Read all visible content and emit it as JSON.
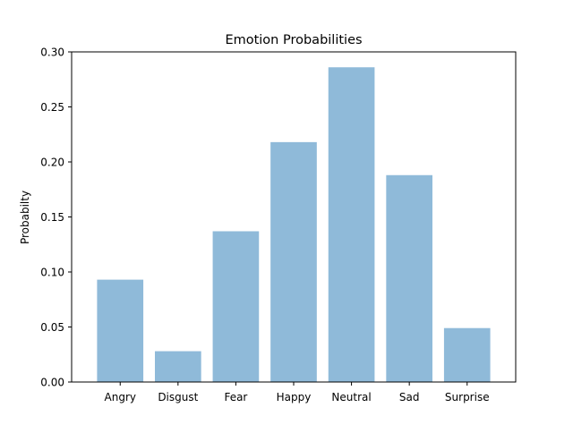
{
  "chart_data": {
    "type": "bar",
    "title": "Emotion Probabilities",
    "xlabel": "",
    "ylabel": "Probabilty",
    "categories": [
      "Angry",
      "Disgust",
      "Fear",
      "Happy",
      "Neutral",
      "Sad",
      "Surprise"
    ],
    "values": [
      0.093,
      0.028,
      0.137,
      0.218,
      0.286,
      0.188,
      0.049
    ],
    "ylim": [
      0.0,
      0.3
    ],
    "yticks": [
      "0.00",
      "0.05",
      "0.10",
      "0.15",
      "0.20",
      "0.25",
      "0.30"
    ],
    "bar_color": "#8fbad9",
    "grid": false,
    "legend": "none"
  }
}
